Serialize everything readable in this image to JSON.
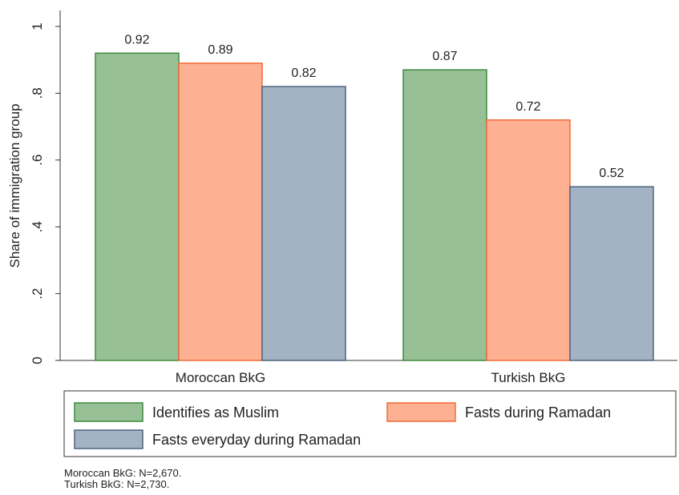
{
  "chart_data": {
    "type": "bar",
    "y_axis_label": "Share of immigration group",
    "categories": [
      "Moroccan BkG",
      "Turkish BkG"
    ],
    "series": [
      {
        "name": "Identifies as Muslim",
        "color": "#98c096",
        "stroke": "#3f8a3f",
        "values": [
          0.92,
          0.87
        ]
      },
      {
        "name": "Fasts during Ramadan",
        "color": "#fdb092",
        "stroke": "#f26b3a",
        "values": [
          0.89,
          0.72
        ]
      },
      {
        "name": "Fasts everyday during Ramadan",
        "color": "#a3b3c4",
        "stroke": "#4d6580",
        "values": [
          0.82,
          0.52
        ]
      }
    ],
    "ylim": [
      0,
      1
    ],
    "yticks": [
      0,
      {
        "value": 0.2,
        "label": ".2"
      },
      {
        "value": 0.4,
        "label": ".4"
      },
      {
        "value": 0.6,
        "label": ".6"
      },
      {
        "value": 0.8,
        "label": ".8"
      },
      1
    ],
    "notes": [
      "Moroccan BkG: N=2,670.",
      "Turkish BkG: N=2,730."
    ]
  }
}
